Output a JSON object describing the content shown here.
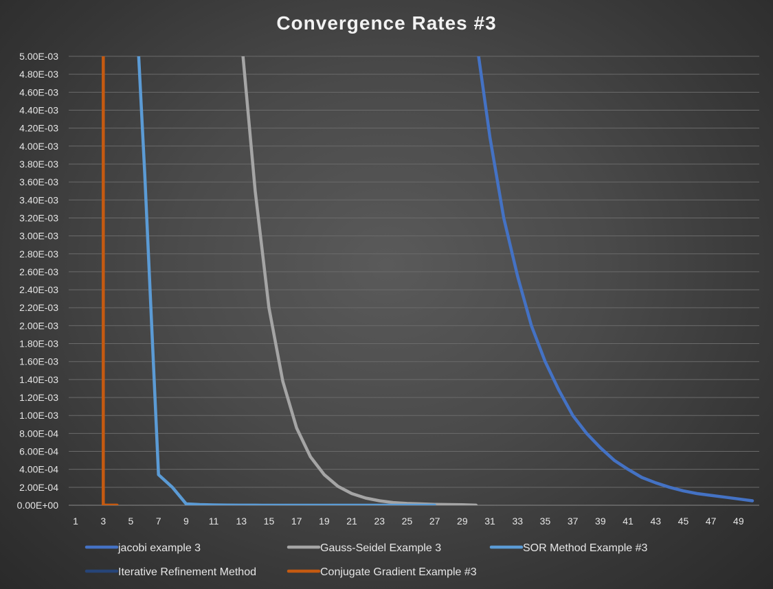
{
  "chart_data": {
    "type": "line",
    "title": "Convergence Rates #3",
    "xlabel": "",
    "ylabel": "",
    "xlim": [
      1,
      50
    ],
    "ylim": [
      0,
      0.005
    ],
    "grid": true,
    "legend_placement": "bottom",
    "y_ticks": [
      "0.00E+00",
      "2.00E-04",
      "4.00E-04",
      "6.00E-04",
      "8.00E-04",
      "1.00E-03",
      "1.20E-03",
      "1.40E-03",
      "1.60E-03",
      "1.80E-03",
      "2.00E-03",
      "2.20E-03",
      "2.40E-03",
      "2.60E-03",
      "2.80E-03",
      "3.00E-03",
      "3.20E-03",
      "3.40E-03",
      "3.60E-03",
      "3.80E-03",
      "4.00E-03",
      "4.20E-03",
      "4.40E-03",
      "4.60E-03",
      "4.80E-03",
      "5.00E-03"
    ],
    "x_ticks": [
      "1",
      "3",
      "5",
      "7",
      "9",
      "11",
      "13",
      "15",
      "17",
      "19",
      "21",
      "23",
      "25",
      "27",
      "29",
      "31",
      "33",
      "35",
      "37",
      "39",
      "41",
      "43",
      "45",
      "47",
      "49"
    ],
    "series": [
      {
        "name": "jacobi example 3",
        "color": "#4472c4",
        "x": [
          30,
          31,
          32,
          33,
          34,
          35,
          36,
          37,
          38,
          39,
          40,
          41,
          42,
          43,
          44,
          45,
          46,
          47,
          48,
          49,
          50
        ],
        "y": [
          0.0052,
          0.0041,
          0.0032,
          0.00255,
          0.002,
          0.0016,
          0.00128,
          0.001,
          0.0008,
          0.00064,
          0.0005,
          0.0004,
          0.00031,
          0.00025,
          0.0002,
          0.00016,
          0.00013,
          0.00011,
          9e-05,
          7e-05,
          5e-05
        ]
      },
      {
        "name": "Gauss-Seidel Example 3",
        "color": "#a5a5a5",
        "x": [
          13,
          14,
          15,
          16,
          17,
          18,
          19,
          20,
          21,
          22,
          23,
          24,
          25,
          26,
          27,
          28,
          29,
          30
        ],
        "y": [
          0.0052,
          0.0035,
          0.0022,
          0.00138,
          0.00086,
          0.00054,
          0.00034,
          0.00021,
          0.00013,
          8e-05,
          5e-05,
          3e-05,
          2e-05,
          1.5e-05,
          1e-05,
          8e-06,
          5e-06,
          5e-07
        ]
      },
      {
        "name": "SOR Method Example #3",
        "color": "#5b9bd5",
        "x": [
          5.5,
          6,
          7,
          8,
          9,
          10,
          11,
          12,
          13,
          14,
          15,
          16,
          17,
          18,
          19,
          20,
          21,
          22,
          23,
          24,
          25,
          26,
          27
        ],
        "y": [
          0.0052,
          0.0037,
          0.00034,
          0.0002,
          1.5e-05,
          8e-06,
          4e-06,
          2e-06,
          1e-06,
          5e-07,
          3e-07,
          2e-07,
          1e-07,
          5e-08,
          3e-08,
          2e-08,
          1e-08,
          1e-08,
          1e-08,
          1e-08,
          1e-08,
          1e-08,
          1e-08
        ]
      },
      {
        "name": "Iterative Refinement Method",
        "color": "#264478",
        "x": [],
        "y": []
      },
      {
        "name": "Conjugate Gradient  Example #3",
        "color": "#c55a11",
        "x": [
          3,
          3,
          4
        ],
        "y": [
          0.0052,
          5e-07,
          5e-07
        ]
      }
    ]
  }
}
